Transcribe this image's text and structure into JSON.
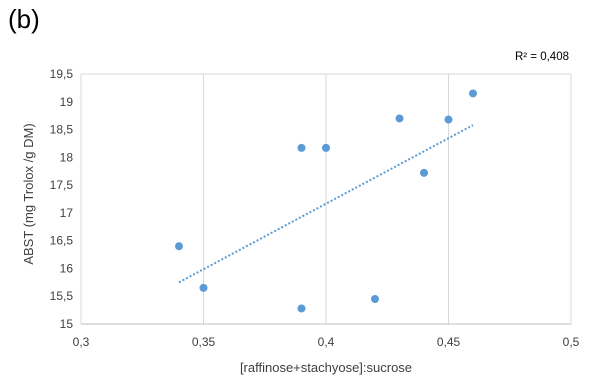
{
  "panel_label": "(b)",
  "chart_data": {
    "type": "scatter",
    "xlabel": "[raffinose+stachyose]:sucrose",
    "ylabel": "ABST (mg Trolox /g DM)",
    "xlim": [
      0.3,
      0.5
    ],
    "ylim": [
      15,
      19.5
    ],
    "x_ticks": [
      0.3,
      0.35,
      0.4,
      0.45,
      0.5
    ],
    "x_tick_labels": [
      "0,3",
      "0,35",
      "0,4",
      "0,45",
      "0,5"
    ],
    "y_ticks": [
      15,
      15.5,
      16,
      16.5,
      17,
      17.5,
      18,
      18.5,
      19,
      19.5
    ],
    "y_tick_labels": [
      "15",
      "15,5",
      "16",
      "16,5",
      "17",
      "17,5",
      "18",
      "18,5",
      "19",
      "19,5"
    ],
    "grid": "vertical",
    "points": [
      {
        "x": 0.34,
        "y": 16.4
      },
      {
        "x": 0.35,
        "y": 15.65
      },
      {
        "x": 0.39,
        "y": 18.17
      },
      {
        "x": 0.39,
        "y": 15.28
      },
      {
        "x": 0.4,
        "y": 18.17
      },
      {
        "x": 0.42,
        "y": 15.45
      },
      {
        "x": 0.43,
        "y": 18.7
      },
      {
        "x": 0.44,
        "y": 17.72
      },
      {
        "x": 0.45,
        "y": 18.68
      },
      {
        "x": 0.46,
        "y": 19.15
      }
    ],
    "trendline": {
      "x": [
        0.34,
        0.46
      ],
      "y": [
        15.75,
        18.58
      ]
    },
    "r_squared_label": "R² = 0,408",
    "colors": {
      "point": "#5b9bd5",
      "trendline": "#5b9bd5",
      "grid": "#d9d9d9",
      "axis": "#bfbfbf"
    }
  }
}
